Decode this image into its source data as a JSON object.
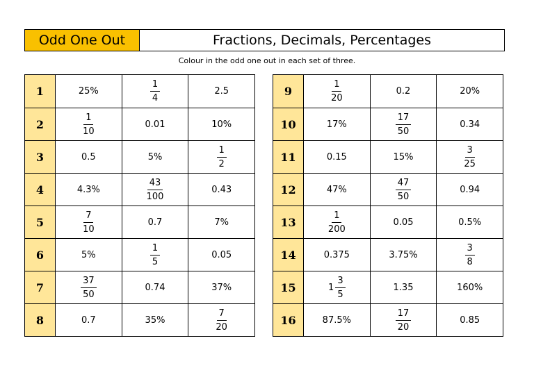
{
  "header": {
    "label": "Odd One Out",
    "title": "Fractions, Decimals, Percentages",
    "instruction": "Colour in the odd one out in each set of three."
  },
  "tables": [
    {
      "rows": [
        {
          "number": "1",
          "cells": [
            "25%",
            {
              "num": "1",
              "den": "4"
            },
            "2.5"
          ]
        },
        {
          "number": "2",
          "cells": [
            {
              "num": "1",
              "den": "10"
            },
            "0.01",
            "10%"
          ]
        },
        {
          "number": "3",
          "cells": [
            "0.5",
            "5%",
            {
              "num": "1",
              "den": "2"
            }
          ]
        },
        {
          "number": "4",
          "cells": [
            "4.3%",
            {
              "num": "43",
              "den": "100"
            },
            "0.43"
          ]
        },
        {
          "number": "5",
          "cells": [
            {
              "num": "7",
              "den": "10"
            },
            "0.7",
            "7%"
          ]
        },
        {
          "number": "6",
          "cells": [
            "5%",
            {
              "num": "1",
              "den": "5"
            },
            "0.05"
          ]
        },
        {
          "number": "7",
          "cells": [
            {
              "num": "37",
              "den": "50"
            },
            "0.74",
            "37%"
          ]
        },
        {
          "number": "8",
          "cells": [
            "0.7",
            "35%",
            {
              "num": "7",
              "den": "20"
            }
          ]
        }
      ]
    },
    {
      "rows": [
        {
          "number": "9",
          "cells": [
            {
              "num": "1",
              "den": "20"
            },
            "0.2",
            "20%"
          ]
        },
        {
          "number": "10",
          "cells": [
            "17%",
            {
              "num": "17",
              "den": "50"
            },
            "0.34"
          ]
        },
        {
          "number": "11",
          "cells": [
            "0.15",
            "15%",
            {
              "num": "3",
              "den": "25"
            }
          ]
        },
        {
          "number": "12",
          "cells": [
            "47%",
            {
              "num": "47",
              "den": "50"
            },
            "0.94"
          ]
        },
        {
          "number": "13",
          "cells": [
            {
              "num": "1",
              "den": "200"
            },
            "0.05",
            "0.5%"
          ]
        },
        {
          "number": "14",
          "cells": [
            "0.375",
            "3.75%",
            {
              "num": "3",
              "den": "8"
            }
          ]
        },
        {
          "number": "15",
          "cells": [
            {
              "whole": "1",
              "num": "3",
              "den": "5"
            },
            "1.35",
            "160%"
          ]
        },
        {
          "number": "16",
          "cells": [
            "87.5%",
            {
              "num": "17",
              "den": "20"
            },
            "0.85"
          ]
        }
      ]
    }
  ]
}
